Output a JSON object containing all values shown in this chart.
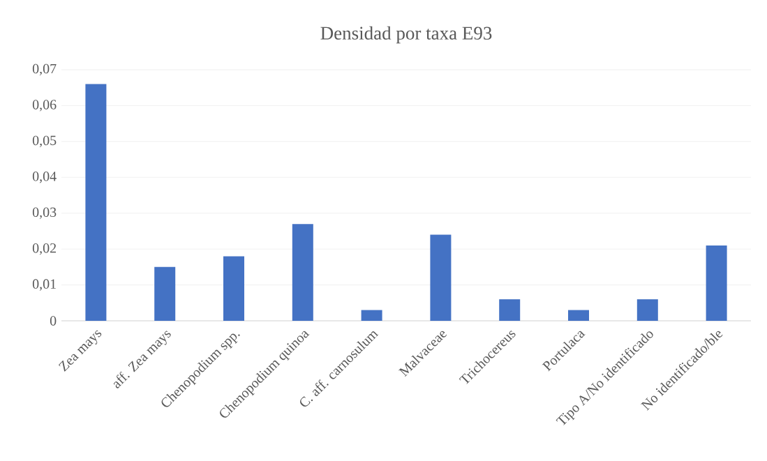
{
  "chart_data": {
    "type": "bar",
    "title": "Densidad por taxa E93",
    "categories": [
      "Zea mays",
      "aff. Zea mays",
      "Chenopodium spp.",
      "Chenopodium quinoa",
      "C. aff. carnosulum",
      "Malvaceae",
      "Trichocereus",
      "Portulaca",
      "Tipo A/No identificado",
      "No identificado/ble"
    ],
    "values": [
      0.066,
      0.015,
      0.018,
      0.027,
      0.003,
      0.024,
      0.006,
      0.003,
      0.006,
      0.021
    ],
    "color": "#4472c4",
    "ylim": [
      0,
      0.07
    ],
    "yticks": [
      {
        "value": 0,
        "label": "0"
      },
      {
        "value": 0.01,
        "label": "0,01"
      },
      {
        "value": 0.02,
        "label": "0,02"
      },
      {
        "value": 0.03,
        "label": "0,03"
      },
      {
        "value": 0.04,
        "label": "0,04"
      },
      {
        "value": 0.05,
        "label": "0,05"
      },
      {
        "value": 0.06,
        "label": "0,06"
      },
      {
        "value": 0.07,
        "label": "0,07"
      }
    ],
    "grid": "y"
  }
}
